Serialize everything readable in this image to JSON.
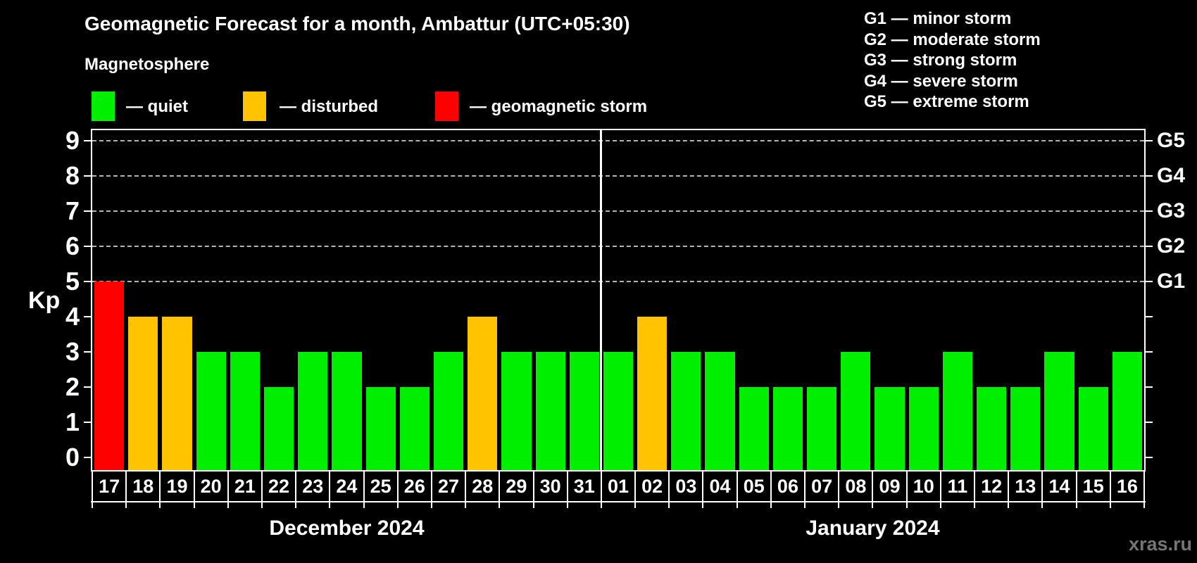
{
  "header": {
    "title": "Geomagnetic Forecast for a month, Ambattur (UTC+05:30)",
    "subtitle": "Magnetosphere"
  },
  "legend": {
    "items": [
      {
        "status": "quiet",
        "label": "— quiet"
      },
      {
        "status": "disturbed",
        "label": "— disturbed"
      },
      {
        "status": "storm",
        "label": "— geomagnetic storm"
      }
    ]
  },
  "g_scale_legend": [
    "G1 — minor storm",
    "G2 — moderate storm",
    "G3 — strong storm",
    "G4 — severe storm",
    "G5 — extreme storm"
  ],
  "watermark": "xras.ru",
  "colors": {
    "quiet": "#00ee00",
    "disturbed": "#ffc300",
    "storm": "#ff0000",
    "grid": "#b4b4b4",
    "axis": "#ffffff",
    "watermark": "#757575",
    "background": "#000000"
  },
  "chart_data": {
    "type": "bar",
    "title": "Geomagnetic Forecast for a month, Ambattur (UTC+05:30)",
    "subtitle": "Magnetosphere",
    "ylabel": "Kp",
    "ylim": [
      0,
      9.3
    ],
    "y_ticks": [
      0,
      1,
      2,
      3,
      4,
      5,
      6,
      7,
      8,
      9
    ],
    "grid": "horizontal dashed lines at Kp 5-9",
    "grid_levels": [
      5,
      6,
      7,
      8,
      9
    ],
    "legend_position": "top-left",
    "right_axis": [
      {
        "label": "G1",
        "kp": 5
      },
      {
        "label": "G2",
        "kp": 6
      },
      {
        "label": "G3",
        "kp": 7
      },
      {
        "label": "G4",
        "kp": 8
      },
      {
        "label": "G5",
        "kp": 9
      }
    ],
    "months": [
      {
        "label": "December 2024",
        "key": "dec",
        "days": 15
      },
      {
        "label": "January 2024",
        "key": "jan",
        "days": 16
      }
    ],
    "categories": [
      "17",
      "18",
      "19",
      "20",
      "21",
      "22",
      "23",
      "24",
      "25",
      "26",
      "27",
      "28",
      "29",
      "30",
      "31",
      "01",
      "02",
      "03",
      "04",
      "05",
      "06",
      "07",
      "08",
      "09",
      "10",
      "11",
      "12",
      "13",
      "14",
      "15",
      "16"
    ],
    "values": [
      5,
      4,
      4,
      3,
      3,
      2,
      3,
      3,
      2,
      2,
      3,
      4,
      3,
      3,
      3,
      3,
      4,
      3,
      3,
      2,
      2,
      2,
      3,
      2,
      2,
      3,
      2,
      2,
      3,
      2,
      3
    ],
    "statuses": [
      "storm",
      "disturbed",
      "disturbed",
      "quiet",
      "quiet",
      "quiet",
      "quiet",
      "quiet",
      "quiet",
      "quiet",
      "quiet",
      "disturbed",
      "quiet",
      "quiet",
      "quiet",
      "quiet",
      "disturbed",
      "quiet",
      "quiet",
      "quiet",
      "quiet",
      "quiet",
      "quiet",
      "quiet",
      "quiet",
      "quiet",
      "quiet",
      "quiet",
      "quiet",
      "quiet",
      "quiet"
    ]
  }
}
